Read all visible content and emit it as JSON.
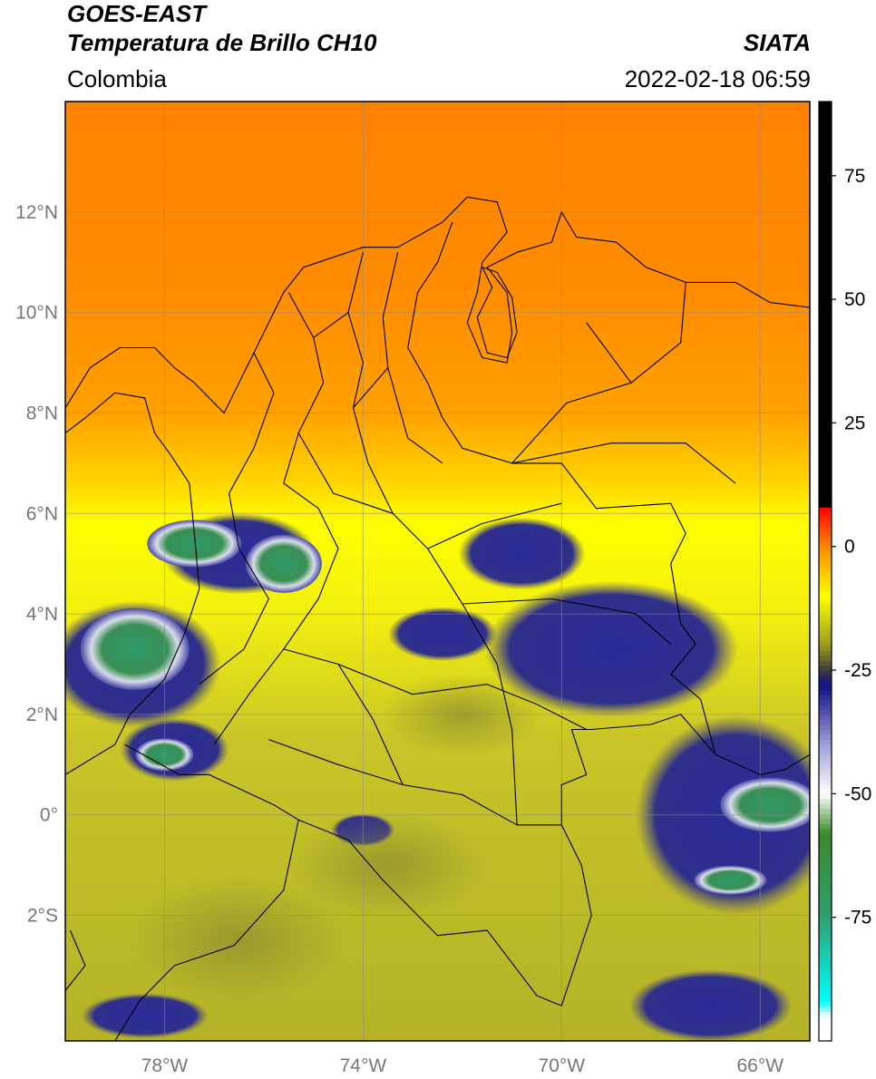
{
  "header": {
    "satellite": "GOES-EAST",
    "product": "Temperatura de Brillo CH10",
    "region": "Colombia",
    "organization": "SIATA",
    "datetime": "2022-02-18 06:59"
  },
  "map": {
    "lon_range": [
      -80,
      -65
    ],
    "lat_range": [
      -4.5,
      14.2
    ],
    "gridlines": true,
    "lon_ticks": [
      {
        "value": -78,
        "label": "78°W"
      },
      {
        "value": -74,
        "label": "74°W"
      },
      {
        "value": -70,
        "label": "70°W"
      },
      {
        "value": -66,
        "label": "66°W"
      }
    ],
    "lat_ticks": [
      {
        "value": 12,
        "label": "12°N"
      },
      {
        "value": 10,
        "label": "10°N"
      },
      {
        "value": 8,
        "label": "8°N"
      },
      {
        "value": 6,
        "label": "6°N"
      },
      {
        "value": 4,
        "label": "4°N"
      },
      {
        "value": 2,
        "label": "2°N"
      },
      {
        "value": 0,
        "label": "0°"
      },
      {
        "value": -2,
        "label": "2°S"
      }
    ]
  },
  "colorbar": {
    "range": [
      -100,
      90
    ],
    "ticks": [
      {
        "value": 75,
        "label": "75"
      },
      {
        "value": 50,
        "label": "50"
      },
      {
        "value": 25,
        "label": "25"
      },
      {
        "value": 0,
        "label": "0"
      },
      {
        "value": -25,
        "label": "-25"
      },
      {
        "value": -50,
        "label": "-50"
      },
      {
        "value": -75,
        "label": "-75"
      }
    ],
    "stops": [
      {
        "value": 90,
        "color": "#000000"
      },
      {
        "value": 8.5,
        "color": "#000000"
      },
      {
        "value": 8,
        "color": "#ff0000"
      },
      {
        "value": 0,
        "color": "#ff8a00"
      },
      {
        "value": -10,
        "color": "#ffff00"
      },
      {
        "value": -20,
        "color": "#9a9a20"
      },
      {
        "value": -25,
        "color": "#3a3a40"
      },
      {
        "value": -28,
        "color": "#10108a"
      },
      {
        "value": -40,
        "color": "#a0a0d8"
      },
      {
        "value": -50,
        "color": "#ffffff"
      },
      {
        "value": -58,
        "color": "#3a8a2a"
      },
      {
        "value": -75,
        "color": "#30a070"
      },
      {
        "value": -92,
        "color": "#00ffff"
      },
      {
        "value": -95,
        "color": "#ffffff"
      },
      {
        "value": -100,
        "color": "#ffffff"
      }
    ]
  }
}
